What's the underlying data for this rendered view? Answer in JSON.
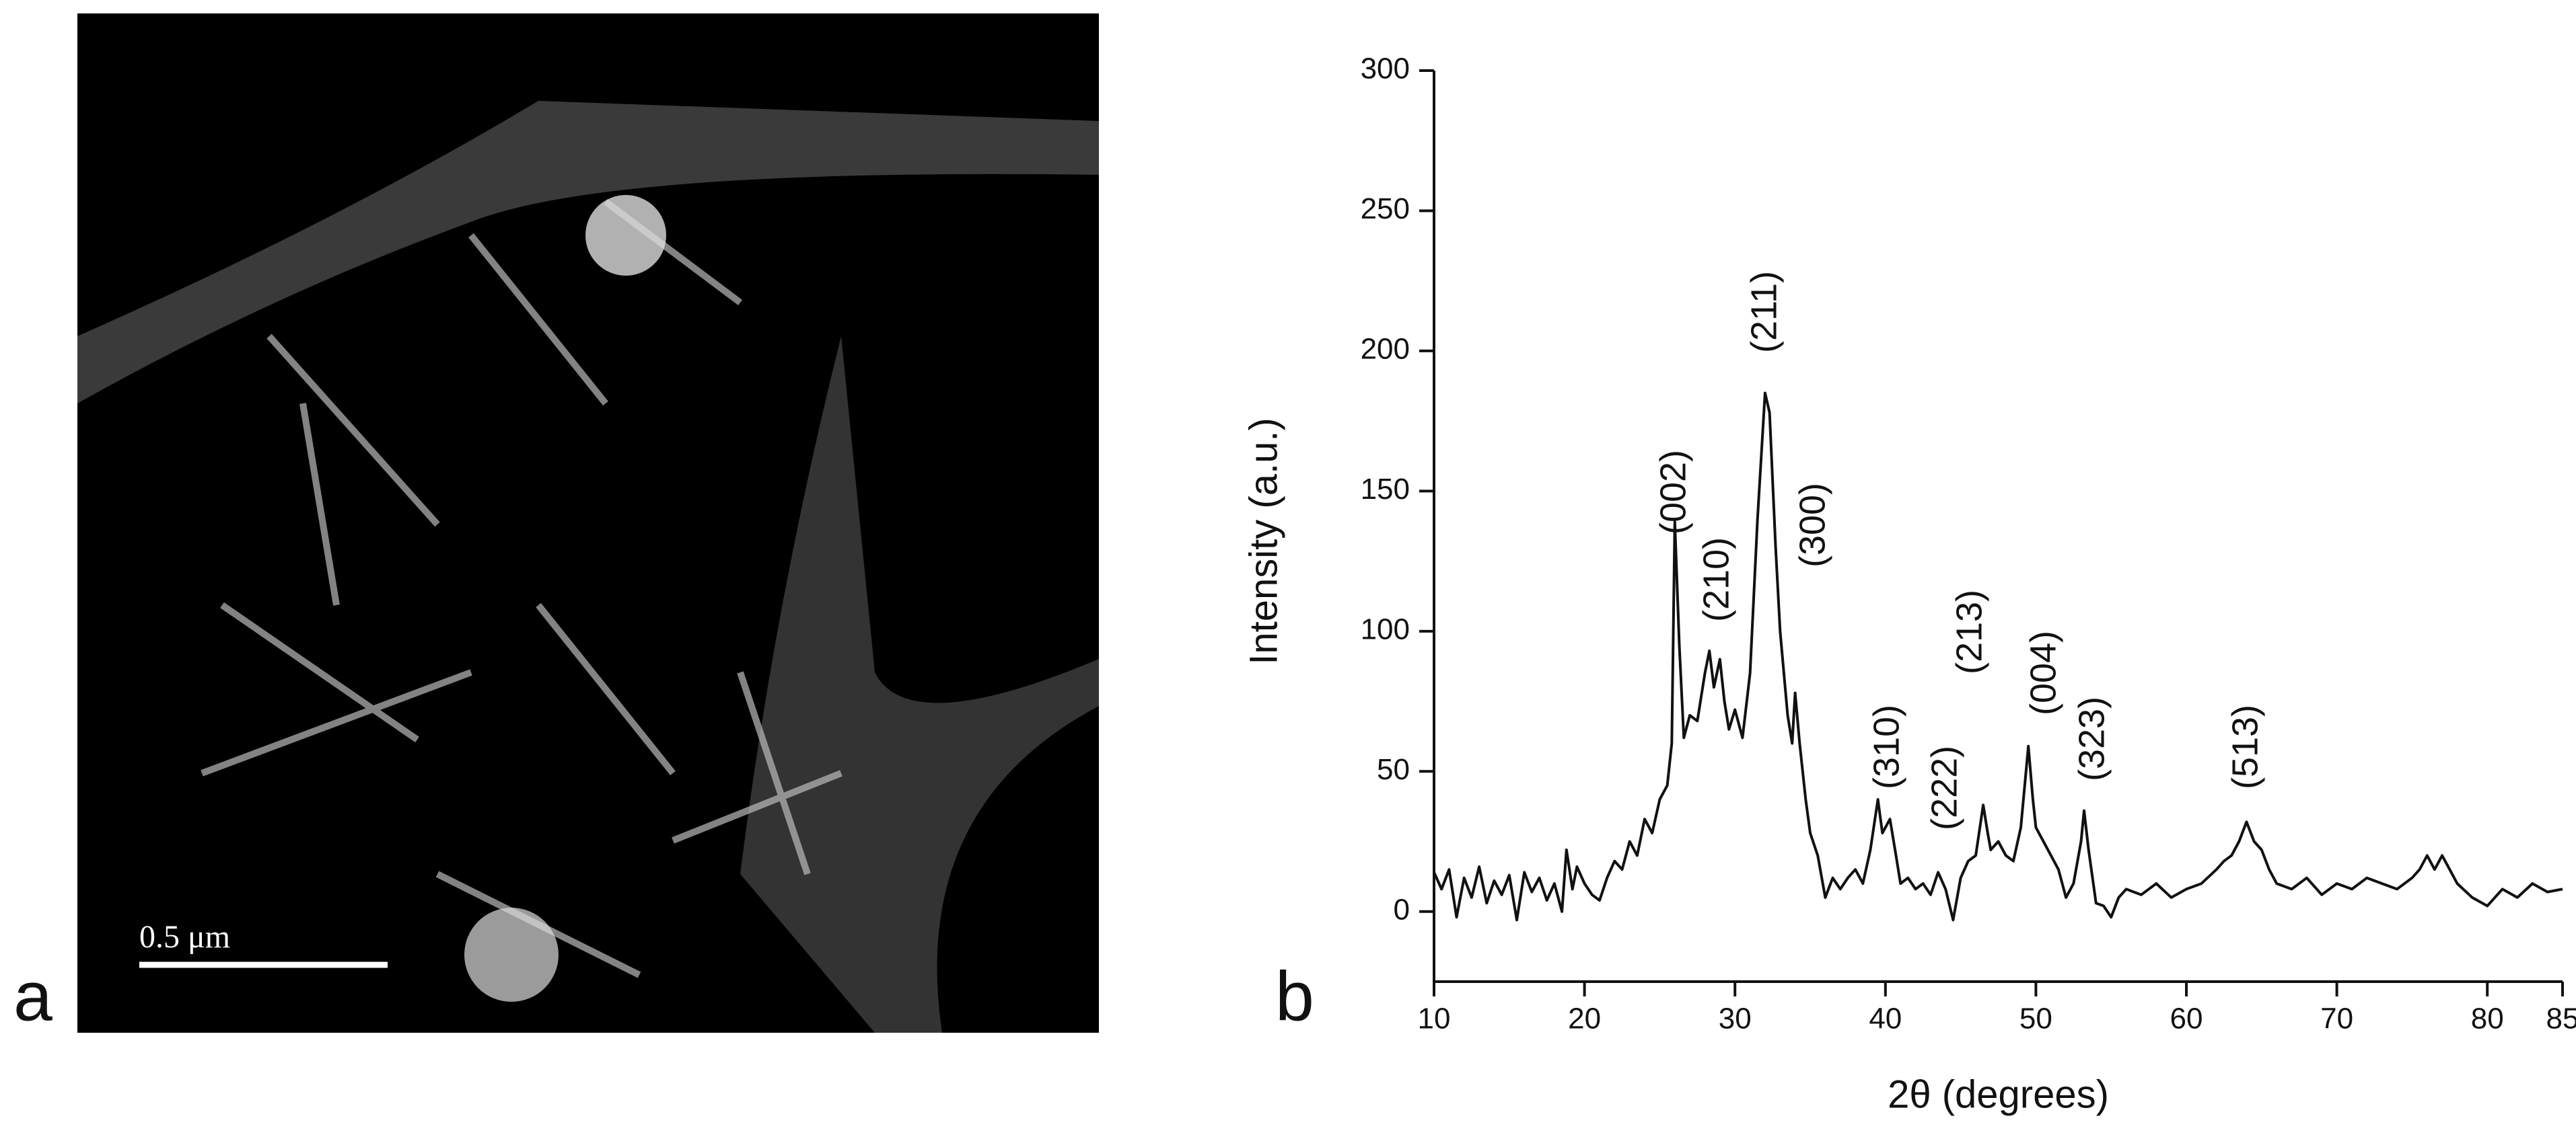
{
  "image_panel": {
    "label": "a",
    "scale_bar": "0.5 μm"
  },
  "chart_data": {
    "type": "line",
    "panel_label": "b",
    "xlabel": "2θ (degrees)",
    "ylabel": "Intensity (a.u.)",
    "annotations": [
      "(002)",
      "(210)",
      "(211)",
      "(300)",
      "(310)",
      "(222)",
      "(213)",
      "(004)",
      "(323)",
      "(513)"
    ],
    "color": "#111111",
    "x": [
      10,
      10.5,
      11,
      11.5,
      12,
      12.5,
      13,
      13.5,
      14,
      14.5,
      15,
      15.5,
      16,
      16.5,
      17,
      17.5,
      18,
      18.5,
      18.8,
      19.2,
      19.5,
      20,
      20.5,
      21,
      21.5,
      22,
      22.5,
      23,
      23.5,
      24,
      24.5,
      25,
      25.5,
      25.8,
      26,
      26.3,
      26.6,
      27,
      27.5,
      28,
      28.3,
      28.6,
      29,
      29.3,
      29.6,
      30,
      30.5,
      31,
      31.5,
      32,
      32.3,
      32.7,
      33,
      33.5,
      33.8,
      34,
      34.3,
      34.7,
      35,
      35.5,
      36,
      36.5,
      37,
      37.5,
      38,
      38.5,
      39,
      39.5,
      39.8,
      40.3,
      40.7,
      41,
      41.5,
      42,
      42.5,
      43,
      43.5,
      44,
      44.5,
      45,
      45.5,
      46,
      46.5,
      46.8,
      47,
      47.5,
      48,
      48.5,
      49,
      49.5,
      49.8,
      50,
      50.5,
      51,
      51.5,
      52,
      52.5,
      53,
      53.2,
      53.5,
      54,
      54.5,
      55,
      55.5,
      56,
      57,
      58,
      59,
      60,
      61,
      62,
      62.5,
      63,
      63.5,
      64,
      64.5,
      65,
      65.5,
      66,
      67,
      68,
      69,
      70,
      71,
      72,
      73,
      74,
      75,
      75.5,
      76,
      76.5,
      77,
      77.5,
      78,
      79,
      80,
      81,
      82,
      83,
      84,
      85
    ],
    "values": [
      14,
      8,
      15,
      -2,
      12,
      5,
      16,
      3,
      11,
      6,
      13,
      -3,
      14,
      7,
      12,
      4,
      10,
      0,
      22,
      8,
      16,
      10,
      6,
      4,
      12,
      18,
      15,
      25,
      20,
      33,
      28,
      40,
      45,
      60,
      139,
      95,
      62,
      70,
      68,
      85,
      93,
      80,
      90,
      75,
      65,
      72,
      62,
      85,
      140,
      185,
      178,
      130,
      100,
      70,
      60,
      78,
      60,
      40,
      28,
      20,
      5,
      12,
      8,
      12,
      15,
      10,
      22,
      40,
      28,
      33,
      20,
      10,
      12,
      8,
      10,
      6,
      14,
      8,
      -3,
      12,
      18,
      20,
      38,
      28,
      22,
      25,
      20,
      18,
      30,
      59,
      40,
      30,
      25,
      20,
      15,
      5,
      10,
      25,
      36,
      22,
      3,
      2,
      -2,
      5,
      8,
      6,
      10,
      5,
      8,
      10,
      15,
      18,
      20,
      25,
      32,
      25,
      22,
      15,
      10,
      8,
      12,
      6,
      10,
      8,
      12,
      10,
      8,
      12,
      15,
      20,
      15,
      20,
      15,
      10,
      5,
      2,
      8,
      5,
      10,
      7,
      8
    ],
    "xlim": [
      10,
      85
    ],
    "xticks": [
      10,
      20,
      30,
      40,
      50,
      60,
      70,
      80,
      85
    ],
    "ylim": [
      -25,
      300
    ],
    "yticks": [
      0,
      50,
      100,
      150,
      200,
      250,
      300
    ]
  }
}
